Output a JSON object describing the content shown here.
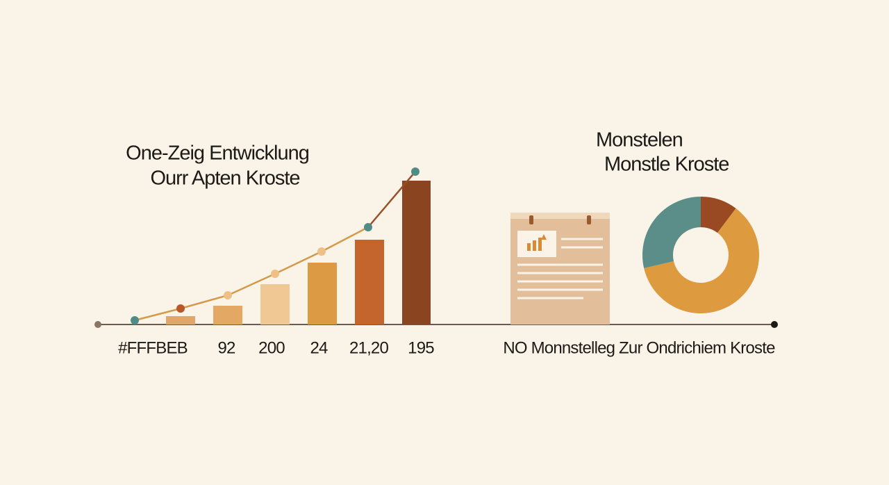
{
  "left_panel": {
    "title_lines": [
      "One-Zeig Entwicklung",
      "Ourr Apten Kroste"
    ],
    "labels": [
      "#FFFBEB",
      "92",
      "200",
      "24",
      "21,20",
      "195"
    ]
  },
  "right_panel": {
    "title_lines": [
      "Monstelen",
      "Monstle Kroste"
    ],
    "caption": "NO Monnstelleg Zur Ondrichiem Kroste"
  }
}
